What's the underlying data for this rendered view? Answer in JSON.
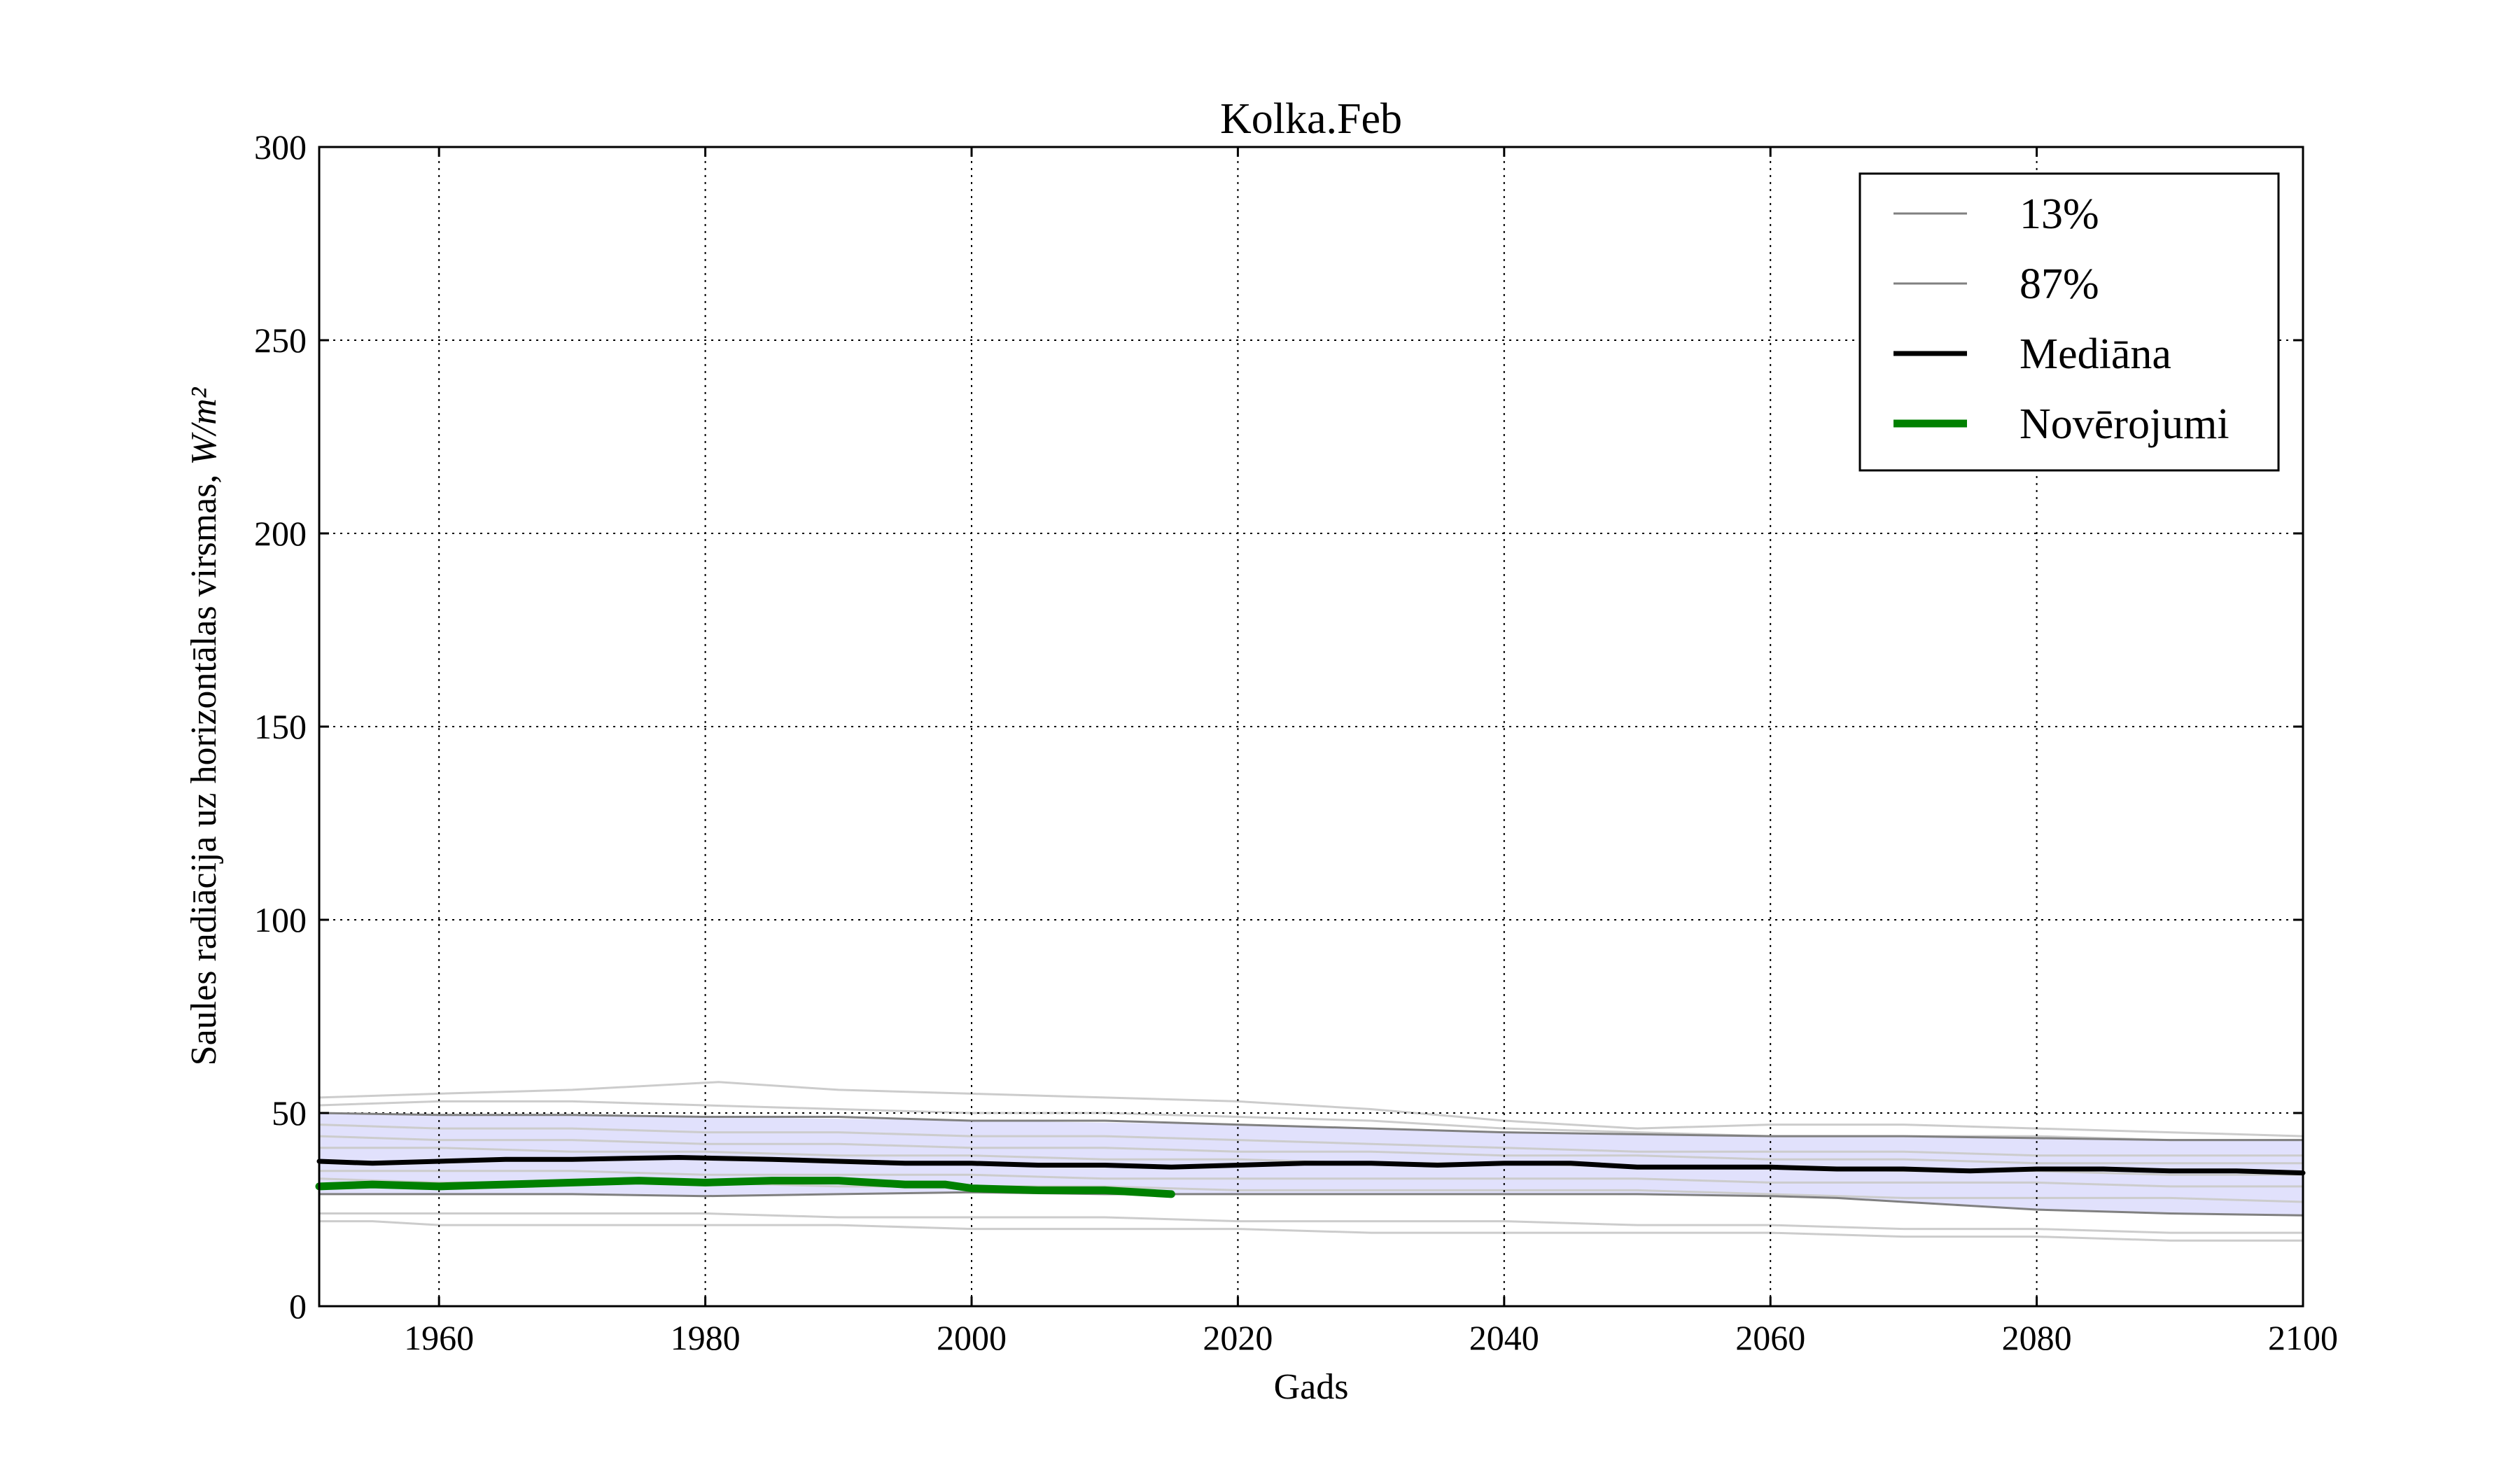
{
  "chart_data": {
    "type": "line",
    "title": "Kolka.Feb",
    "xlabel": "Gads",
    "ylabel": "Saules radiācija uz horizontālas virsmas,",
    "ylabel_unit": "W/m²",
    "xlim": [
      1951,
      2100
    ],
    "ylim": [
      0,
      300
    ],
    "xticks": [
      1960,
      1980,
      2000,
      2020,
      2040,
      2060,
      2080,
      2100
    ],
    "yticks": [
      0,
      50,
      100,
      150,
      200,
      250,
      300
    ],
    "grid": true,
    "legend_position": "top-right",
    "band": {
      "color": "#dcdcfb",
      "lower": [
        [
          1951,
          29
        ],
        [
          1960,
          29
        ],
        [
          1980,
          28.5
        ],
        [
          2000,
          29.5
        ],
        [
          2020,
          29
        ],
        [
          2040,
          29
        ],
        [
          2060,
          28.5
        ],
        [
          2070,
          27
        ],
        [
          2080,
          25
        ],
        [
          2090,
          24
        ],
        [
          2100,
          23.5
        ]
      ],
      "upper": [
        [
          1951,
          50
        ],
        [
          1960,
          49.5
        ],
        [
          1980,
          49
        ],
        [
          2000,
          48
        ],
        [
          2020,
          47
        ],
        [
          2040,
          45
        ],
        [
          2060,
          44
        ],
        [
          2080,
          43.5
        ],
        [
          2100,
          43
        ]
      ]
    },
    "series": [
      {
        "name": "13%",
        "color": "#808080",
        "width": 3,
        "values": [
          [
            1951,
            29
          ],
          [
            1960,
            29
          ],
          [
            1970,
            29
          ],
          [
            1980,
            28.5
          ],
          [
            1990,
            29
          ],
          [
            2000,
            29.5
          ],
          [
            2010,
            29
          ],
          [
            2020,
            29
          ],
          [
            2030,
            29
          ],
          [
            2040,
            29
          ],
          [
            2050,
            29
          ],
          [
            2060,
            28.5
          ],
          [
            2065,
            28
          ],
          [
            2070,
            27
          ],
          [
            2075,
            26
          ],
          [
            2080,
            25
          ],
          [
            2090,
            24
          ],
          [
            2100,
            23.5
          ]
        ]
      },
      {
        "name": "87%",
        "color": "#808080",
        "width": 3,
        "values": [
          [
            1951,
            50
          ],
          [
            1960,
            49.5
          ],
          [
            1970,
            49.5
          ],
          [
            1980,
            49
          ],
          [
            1990,
            49
          ],
          [
            2000,
            48
          ],
          [
            2010,
            48
          ],
          [
            2020,
            47
          ],
          [
            2030,
            46
          ],
          [
            2040,
            45
          ],
          [
            2050,
            44.5
          ],
          [
            2060,
            44
          ],
          [
            2070,
            44
          ],
          [
            2080,
            43.5
          ],
          [
            2090,
            43
          ],
          [
            2100,
            43
          ]
        ]
      },
      {
        "name": "Mediāna",
        "color": "#000000",
        "width": 7,
        "values": [
          [
            1951,
            37.5
          ],
          [
            1955,
            37
          ],
          [
            1960,
            37.5
          ],
          [
            1965,
            38
          ],
          [
            1970,
            38
          ],
          [
            1978,
            38.5
          ],
          [
            1985,
            38
          ],
          [
            1990,
            37.5
          ],
          [
            1995,
            37
          ],
          [
            2000,
            37
          ],
          [
            2005,
            36.5
          ],
          [
            2010,
            36.5
          ],
          [
            2015,
            36
          ],
          [
            2020,
            36.5
          ],
          [
            2025,
            37
          ],
          [
            2030,
            37
          ],
          [
            2035,
            36.5
          ],
          [
            2040,
            37
          ],
          [
            2045,
            37
          ],
          [
            2050,
            36
          ],
          [
            2055,
            36
          ],
          [
            2060,
            36
          ],
          [
            2065,
            35.5
          ],
          [
            2070,
            35.5
          ],
          [
            2075,
            35
          ],
          [
            2080,
            35.5
          ],
          [
            2085,
            35.5
          ],
          [
            2090,
            35
          ],
          [
            2095,
            35
          ],
          [
            2100,
            34.5
          ]
        ]
      },
      {
        "name": "Novērojumi",
        "color": "#008000",
        "width": 11,
        "values": [
          [
            1951,
            31
          ],
          [
            1955,
            31.5
          ],
          [
            1960,
            31
          ],
          [
            1965,
            31.5
          ],
          [
            1970,
            32
          ],
          [
            1975,
            32.5
          ],
          [
            1980,
            32
          ],
          [
            1985,
            32.5
          ],
          [
            1990,
            32.5
          ],
          [
            1995,
            31.5
          ],
          [
            1998,
            31.5
          ],
          [
            2000,
            30.5
          ],
          [
            2005,
            30
          ],
          [
            2010,
            30
          ],
          [
            2015,
            29
          ]
        ]
      }
    ],
    "ensemble_members": [
      [
        [
          1951,
          54
        ],
        [
          1960,
          55
        ],
        [
          1970,
          56
        ],
        [
          1981,
          58
        ],
        [
          1990,
          56
        ],
        [
          2000,
          55
        ],
        [
          2010,
          54
        ],
        [
          2020,
          53
        ],
        [
          2030,
          51
        ],
        [
          2040,
          48
        ],
        [
          2050,
          46
        ],
        [
          2060,
          47
        ],
        [
          2070,
          47
        ],
        [
          2080,
          46
        ],
        [
          2090,
          45
        ],
        [
          2100,
          44
        ]
      ],
      [
        [
          1951,
          52
        ],
        [
          1960,
          53
        ],
        [
          1970,
          53
        ],
        [
          1980,
          52
        ],
        [
          1990,
          51
        ],
        [
          2000,
          50
        ],
        [
          2010,
          50
        ],
        [
          2020,
          49
        ],
        [
          2030,
          48
        ],
        [
          2040,
          46
        ],
        [
          2050,
          45
        ],
        [
          2060,
          44
        ],
        [
          2070,
          44
        ],
        [
          2080,
          44
        ],
        [
          2090,
          43
        ],
        [
          2100,
          43
        ]
      ],
      [
        [
          1951,
          47
        ],
        [
          1960,
          46
        ],
        [
          1970,
          46
        ],
        [
          1980,
          45
        ],
        [
          1990,
          45
        ],
        [
          2000,
          44
        ],
        [
          2010,
          44
        ],
        [
          2020,
          43
        ],
        [
          2030,
          42
        ],
        [
          2040,
          41
        ],
        [
          2050,
          40
        ],
        [
          2060,
          40
        ],
        [
          2070,
          40
        ],
        [
          2080,
          39
        ],
        [
          2090,
          39
        ],
        [
          2100,
          39
        ]
      ],
      [
        [
          1951,
          44
        ],
        [
          1960,
          43
        ],
        [
          1970,
          43
        ],
        [
          1980,
          42
        ],
        [
          1990,
          42
        ],
        [
          2000,
          41
        ],
        [
          2010,
          41
        ],
        [
          2020,
          40
        ],
        [
          2030,
          40
        ],
        [
          2040,
          39
        ],
        [
          2050,
          39
        ],
        [
          2060,
          38
        ],
        [
          2070,
          38
        ],
        [
          2080,
          37
        ],
        [
          2090,
          37
        ],
        [
          2100,
          37
        ]
      ],
      [
        [
          1951,
          41
        ],
        [
          1960,
          41
        ],
        [
          1970,
          40
        ],
        [
          1980,
          40
        ],
        [
          1990,
          39
        ],
        [
          2000,
          39
        ],
        [
          2010,
          38
        ],
        [
          2020,
          38
        ],
        [
          2030,
          37
        ],
        [
          2040,
          37
        ],
        [
          2050,
          36
        ],
        [
          2060,
          36
        ],
        [
          2070,
          35
        ],
        [
          2080,
          35
        ],
        [
          2090,
          34
        ],
        [
          2100,
          34
        ]
      ],
      [
        [
          1951,
          35
        ],
        [
          1960,
          35
        ],
        [
          1970,
          35
        ],
        [
          1980,
          34
        ],
        [
          1990,
          34
        ],
        [
          2000,
          34
        ],
        [
          2010,
          33
        ],
        [
          2020,
          33
        ],
        [
          2030,
          33
        ],
        [
          2040,
          33
        ],
        [
          2050,
          33
        ],
        [
          2060,
          32
        ],
        [
          2070,
          32
        ],
        [
          2080,
          32
        ],
        [
          2090,
          31
        ],
        [
          2100,
          31
        ]
      ],
      [
        [
          1951,
          33
        ],
        [
          1960,
          32
        ],
        [
          1970,
          32
        ],
        [
          1980,
          32
        ],
        [
          1990,
          31
        ],
        [
          2000,
          31
        ],
        [
          2010,
          31
        ],
        [
          2020,
          30
        ],
        [
          2030,
          30
        ],
        [
          2040,
          30
        ],
        [
          2050,
          30
        ],
        [
          2060,
          29
        ],
        [
          2070,
          28
        ],
        [
          2080,
          28
        ],
        [
          2090,
          28
        ],
        [
          2100,
          27
        ]
      ],
      [
        [
          1951,
          24
        ],
        [
          1960,
          24
        ],
        [
          1970,
          24
        ],
        [
          1980,
          24
        ],
        [
          1990,
          23
        ],
        [
          2000,
          23
        ],
        [
          2010,
          23
        ],
        [
          2020,
          22
        ],
        [
          2030,
          22
        ],
        [
          2040,
          22
        ],
        [
          2050,
          21
        ],
        [
          2060,
          21
        ],
        [
          2070,
          20
        ],
        [
          2080,
          20
        ],
        [
          2090,
          19
        ],
        [
          2100,
          19
        ]
      ],
      [
        [
          1951,
          22
        ],
        [
          1955,
          22
        ],
        [
          1960,
          21
        ],
        [
          1970,
          21
        ],
        [
          1980,
          21
        ],
        [
          1990,
          21
        ],
        [
          2000,
          20
        ],
        [
          2010,
          20
        ],
        [
          2020,
          20
        ],
        [
          2030,
          19
        ],
        [
          2040,
          19
        ],
        [
          2050,
          19
        ],
        [
          2060,
          19
        ],
        [
          2070,
          18
        ],
        [
          2080,
          18
        ],
        [
          2090,
          17
        ],
        [
          2100,
          17
        ]
      ]
    ],
    "ensemble_color": "#cccccc"
  }
}
